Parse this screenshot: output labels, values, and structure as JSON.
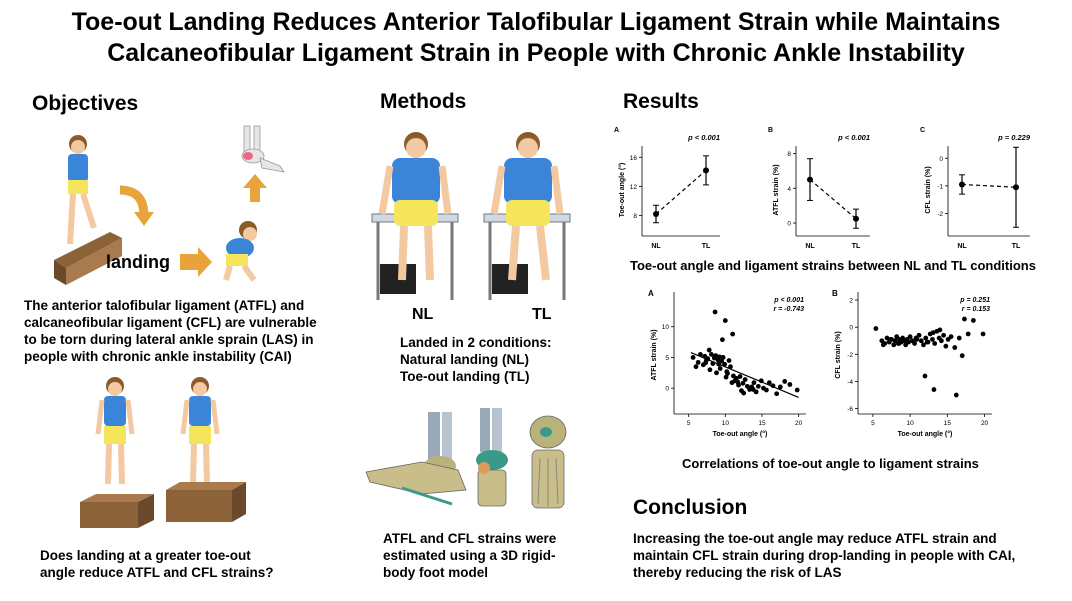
{
  "title": {
    "line1": "Toe-out Landing Reduces Anterior Talofibular Ligament Strain while Maintains",
    "line2": "Calcaneofibular Ligament Strain in People with Chronic Ankle Instability"
  },
  "objectives": {
    "heading": "Objectives",
    "landing_label": "landing",
    "text": [
      "The anterior talofibular ligament (ATFL) and",
      "calcaneofibular ligament (CFL) are vulnerable",
      "to be torn during lateral ankle sprain (LAS) in",
      "people with chronic ankle instability (CAI)"
    ],
    "question": [
      "Does landing at a greater toe-out",
      "angle reduce ATFL and CFL strains?"
    ]
  },
  "methods": {
    "heading": "Methods",
    "nl_label": "NL",
    "tl_label": "TL",
    "conditions": [
      "Landed in 2 conditions:",
      "Natural landing (NL)",
      "Toe-out landing (TL)"
    ],
    "model_text": [
      "ATFL and CFL strains were",
      "estimated using a 3D rigid-",
      "body foot model"
    ]
  },
  "results": {
    "heading": "Results",
    "caption1": "Toe-out angle and ligament strains between NL and TL conditions",
    "caption2": "Correlations of toe-out angle to ligament strains"
  },
  "conclusion": {
    "heading": "Conclusion",
    "text": [
      "Increasing the toe-out angle may reduce ATFL strain and",
      "maintain CFL strain during drop-landing in people with CAI,",
      "thereby reducing the risk of LAS"
    ]
  },
  "chart_data": [
    {
      "type": "line",
      "panel": "A",
      "categories": [
        "NL",
        "TL"
      ],
      "ylabel": "Toe-out angle (°)",
      "ylim": [
        6,
        17
      ],
      "yticks": [
        8,
        12,
        16
      ],
      "p_label": "p < 0.001",
      "means": [
        8.2,
        14.2
      ],
      "error": [
        [
          7.0,
          9.4
        ],
        [
          12.2,
          16.2
        ]
      ]
    },
    {
      "type": "line",
      "panel": "B",
      "categories": [
        "NL",
        "TL"
      ],
      "ylabel": "ATFL strain (%)",
      "ylim": [
        -0.8,
        8.4
      ],
      "yticks": [
        0,
        4,
        8
      ],
      "p_label": "p < 0.001",
      "means": [
        5.0,
        0.5
      ],
      "error": [
        [
          2.6,
          7.4
        ],
        [
          -0.6,
          1.6
        ]
      ]
    },
    {
      "type": "line",
      "panel": "C",
      "categories": [
        "NL",
        "TL"
      ],
      "ylabel": "CFL strain (%)",
      "ylim": [
        -2.6,
        0.3
      ],
      "yticks": [
        0,
        -1,
        -2
      ],
      "p_label": "p = 0.229",
      "means": [
        -0.95,
        -1.05
      ],
      "error": [
        [
          -1.3,
          -0.6
        ],
        [
          -2.5,
          0.4
        ]
      ]
    },
    {
      "type": "scatter",
      "panel": "A",
      "xlabel": "Toe-out angle (°)",
      "ylabel": "ATFL strain (%)",
      "xlim": [
        3,
        21
      ],
      "ylim": [
        -4.2,
        15
      ],
      "xticks": [
        5,
        10,
        15,
        20
      ],
      "yticks": [
        0,
        5,
        10
      ],
      "stats": [
        "p < 0.001",
        "r = -0.743"
      ],
      "fit": {
        "x": [
          5.3,
          20
        ],
        "y": [
          5.8,
          -1.5
        ]
      },
      "x": [
        5.6,
        6.0,
        6.3,
        6.6,
        7.0,
        7.2,
        7.4,
        7.6,
        7.8,
        7.9,
        8.1,
        8.3,
        8.5,
        8.7,
        8.8,
        9.0,
        9.2,
        9.3,
        9.5,
        9.7,
        9.9,
        10.1,
        10.3,
        10.5,
        10.7,
        10.9,
        11.1,
        11.3,
        11.5,
        11.8,
        12.0,
        12.2,
        12.4,
        12.7,
        13.0,
        13.3,
        13.6,
        13.9,
        14.2,
        14.5,
        14.9,
        15.2,
        15.6,
        16.0,
        16.5,
        17.0,
        17.5,
        18.1,
        18.8,
        19.8,
        8.6,
        9.6,
        10.0,
        11.0,
        10.2,
        12.5,
        9.1,
        13.8,
        7.3,
        11.7
      ],
      "y": [
        5.0,
        3.5,
        4.2,
        5.5,
        3.8,
        5.2,
        4.5,
        4.8,
        6.2,
        3.0,
        5.5,
        4.0,
        4.9,
        5.3,
        2.5,
        4.6,
        5.1,
        3.2,
        4.4,
        5.0,
        3.9,
        1.8,
        2.4,
        4.5,
        3.5,
        0.9,
        2.0,
        1.2,
        1.6,
        0.5,
        1.9,
        -0.4,
        0.8,
        1.4,
        0.3,
        -0.2,
        0.2,
        0.9,
        -0.6,
        0.3,
        1.2,
        0.0,
        -0.3,
        0.9,
        0.4,
        -0.9,
        0.2,
        1.1,
        0.6,
        -0.3,
        12.4,
        7.9,
        11.0,
        8.8,
        2.7,
        -0.8,
        3.9,
        -0.2,
        4.1,
        1.0
      ]
    },
    {
      "type": "scatter",
      "panel": "B",
      "xlabel": "Toe-out angle (°)",
      "ylabel": "CFL strain (%)",
      "xlim": [
        3,
        21
      ],
      "ylim": [
        -6.4,
        2.3
      ],
      "xticks": [
        5,
        10,
        15,
        20
      ],
      "yticks": [
        2,
        0,
        -2,
        -4,
        -6
      ],
      "stats": [
        "p = 0.251",
        "r = 0.153"
      ],
      "x": [
        5.4,
        6.2,
        6.6,
        6.9,
        7.2,
        7.5,
        7.8,
        8.0,
        8.2,
        8.4,
        8.6,
        8.8,
        9.0,
        9.2,
        9.4,
        9.6,
        9.8,
        10.0,
        10.3,
        10.6,
        10.9,
        11.2,
        11.5,
        11.8,
        12.1,
        12.4,
        12.7,
        13.0,
        13.3,
        13.6,
        13.9,
        14.2,
        14.5,
        14.8,
        15.1,
        15.5,
        16.0,
        16.6,
        17.3,
        17.8,
        18.5,
        19.8,
        6.4,
        7.4,
        8.5,
        9.3,
        10.8,
        12.3,
        13.1,
        14.0,
        12.0,
        13.2,
        16.2,
        17.0
      ],
      "y": [
        -0.1,
        -1.0,
        -1.2,
        -0.8,
        -1.1,
        -0.9,
        -1.3,
        -1.0,
        -0.7,
        -1.2,
        -0.9,
        -1.1,
        -0.8,
        -1.0,
        -1.3,
        -0.9,
        -1.1,
        -0.7,
        -1.0,
        -1.2,
        -0.9,
        -0.6,
        -1.0,
        -1.3,
        -0.8,
        -1.1,
        -0.5,
        -0.9,
        -1.2,
        -0.3,
        -0.8,
        -1.0,
        -0.6,
        -1.4,
        -0.9,
        -0.7,
        -1.5,
        -0.8,
        0.6,
        -0.5,
        0.5,
        -0.5,
        -1.3,
        -0.9,
        -1.2,
        -1.0,
        -0.8,
        -1.1,
        -0.4,
        -0.2,
        -3.6,
        -4.6,
        -5.0,
        -2.1
      ]
    }
  ]
}
